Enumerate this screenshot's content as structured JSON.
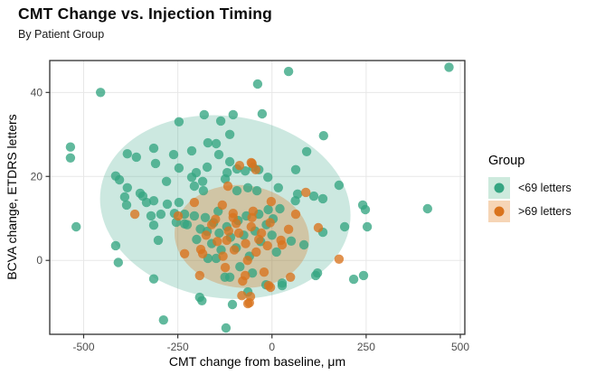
{
  "header": {
    "title": "CMT Change vs. Injection Timing",
    "subtitle": "By Patient Group"
  },
  "axes": {
    "x": {
      "label": "CMT change from baseline, μm",
      "tick_labels": [
        "-500",
        "-250",
        "0",
        "250",
        "500"
      ]
    },
    "y": {
      "label": "BCVA change, ETDRS letters",
      "tick_labels": [
        "0",
        "20",
        "40"
      ]
    }
  },
  "legend": {
    "title": "Group",
    "items": [
      {
        "label": "<69 letters",
        "dot_color": "#35a582",
        "swatch_bg": "#cdeadd"
      },
      {
        "label": ">69 letters",
        "dot_color": "#d9731d",
        "swatch_bg": "#f6d5b6"
      }
    ]
  },
  "colors": {
    "gridline": "#e7e7e7",
    "panel_border": "#2e2e2e",
    "tick_mark": "#333333",
    "tick_label": "#4d4d4d",
    "background": "#ffffff",
    "teal_point": "#35a582",
    "orange_point": "#d9731d"
  },
  "chart_data": {
    "type": "scatter",
    "title": "CMT Change vs. Injection Timing",
    "subtitle": "By Patient Group",
    "xlabel": "CMT change from baseline, μm",
    "ylabel": "BCVA change, ETDRS letters",
    "x_domain": [
      -590,
      512
    ],
    "y_domain": [
      -17.6,
      47.6
    ],
    "x_ticks": [
      -500,
      -250,
      0,
      250,
      500
    ],
    "y_ticks": [
      0,
      20,
      40
    ],
    "grid": "major only, light gray on white panel with black border",
    "legend_position": "right",
    "legend_title": "Group",
    "point_radius_px": 5.2,
    "point_opacity": 0.78,
    "series": [
      {
        "name": "<69 letters",
        "point_color": "#35a582",
        "ellipse_fill": "rgba(53,165,130,0.25)",
        "ellipse": {
          "cx": -124,
          "cy": 12.7,
          "rx": 334,
          "ry": 21.7,
          "angle_deg": 8
        },
        "points": [
          [
            470,
            46
          ],
          [
            -455,
            40
          ],
          [
            44,
            45
          ],
          [
            -38,
            42
          ],
          [
            -535,
            27
          ],
          [
            -535,
            24.4
          ],
          [
            -247,
            33
          ],
          [
            -314,
            26.7
          ],
          [
            -384,
            25.4
          ],
          [
            -360,
            24.6
          ],
          [
            -261,
            25.2
          ],
          [
            -309,
            23.1
          ],
          [
            -247,
            22
          ],
          [
            -415,
            20.1
          ],
          [
            -405,
            19.2
          ],
          [
            -280,
            18.8
          ],
          [
            -384,
            17.3
          ],
          [
            -350,
            16
          ],
          [
            -180,
            34.7
          ],
          [
            -103,
            34.7
          ],
          [
            -26,
            34.9
          ],
          [
            -136,
            33.2
          ],
          [
            -112,
            30
          ],
          [
            -170,
            28
          ],
          [
            -148,
            27.8
          ],
          [
            -213,
            26.1
          ],
          [
            -141,
            25.2
          ],
          [
            -112,
            23.5
          ],
          [
            137,
            29.7
          ],
          [
            92,
            25.9
          ],
          [
            -172,
            22.2
          ],
          [
            -201,
            20.9
          ],
          [
            -119,
            20.9
          ],
          [
            -93,
            21.8
          ],
          [
            -71,
            21.3
          ],
          [
            -50,
            22.2
          ],
          [
            -35,
            21.6
          ],
          [
            -213,
            19.8
          ],
          [
            -184,
            18.8
          ],
          [
            -124,
            19.4
          ],
          [
            -11,
            19.8
          ],
          [
            63,
            21.6
          ],
          [
            178,
            17.9
          ],
          [
            -206,
            17.7
          ],
          [
            -182,
            16.6
          ],
          [
            -64,
            17.3
          ],
          [
            -40,
            16.6
          ],
          [
            17,
            17.3
          ],
          [
            68,
            15.8
          ],
          [
            111,
            15.3
          ],
          [
            -93,
            16.6
          ],
          [
            -386,
            13.2
          ],
          [
            -333,
            13.8
          ],
          [
            -314,
            14.2
          ],
          [
            -278,
            13.4
          ],
          [
            -247,
            13.8
          ],
          [
            -321,
            10.6
          ],
          [
            -295,
            11
          ],
          [
            -259,
            11.2
          ],
          [
            -232,
            11
          ],
          [
            -520,
            8
          ],
          [
            -314,
            8.4
          ],
          [
            -254,
            9.1
          ],
          [
            -232,
            8.7
          ],
          [
            -302,
            4.8
          ],
          [
            -415,
            3.5
          ],
          [
            -408,
            -0.5
          ],
          [
            -314,
            -4.4
          ],
          [
            -288,
            -14.2
          ],
          [
            -122,
            -16.1
          ],
          [
            -391,
            15.1
          ],
          [
            -343,
            15.3
          ],
          [
            241,
            13.2
          ],
          [
            248,
            12.1
          ],
          [
            193,
            8
          ],
          [
            253,
            8
          ],
          [
            217,
            -4.5
          ],
          [
            243,
            -3.6
          ],
          [
            413,
            12.3
          ],
          [
            135,
            14.7
          ],
          [
            -143,
            11.7
          ],
          [
            -68,
            10.6
          ],
          [
            -10,
            12.1
          ],
          [
            21,
            12.3
          ],
          [
            62,
            14.2
          ],
          [
            -206,
            10.6
          ],
          [
            -177,
            10.2
          ],
          [
            3,
            9.9
          ],
          [
            135,
            6.7
          ],
          [
            85,
            3.7
          ],
          [
            51,
            4.6
          ],
          [
            12,
            2
          ],
          [
            -172,
            6.9
          ],
          [
            -148,
            0.5
          ],
          [
            -112,
            -4
          ],
          [
            -52,
            -3
          ],
          [
            27,
            -6
          ],
          [
            121,
            -3
          ],
          [
            -192,
            -8.8
          ],
          [
            -105,
            -10.5
          ],
          [
            -64,
            -7.5
          ],
          [
            -125,
            -4
          ],
          [
            -16,
            -5.8
          ],
          [
            27,
            -5.4
          ],
          [
            116,
            -3.6
          ],
          [
            -186,
            -9.6
          ],
          [
            -225,
            8.5
          ],
          [
            -200,
            5
          ],
          [
            -190,
            7.5
          ],
          [
            -160,
            4
          ],
          [
            -155,
            9
          ],
          [
            -140,
            6.5
          ],
          [
            -135,
            2.5
          ],
          [
            -120,
            8
          ],
          [
            -110,
            5.5
          ],
          [
            -95,
            3
          ],
          [
            -90,
            9.5
          ],
          [
            -75,
            6
          ],
          [
            -60,
            1
          ],
          [
            -45,
            7
          ],
          [
            -30,
            4.5
          ],
          [
            -15,
            8.5
          ],
          [
            0,
            6
          ],
          [
            -170,
            0.5
          ],
          [
            -85,
            -1.5
          ],
          [
            -35,
            11
          ]
        ]
      },
      {
        "name": ">69 letters",
        "point_color": "#d9731d",
        "ellipse_fill": "rgba(217,115,29,0.30)",
        "ellipse": {
          "cx": -80,
          "cy": 5.7,
          "rx": 179,
          "ry": 12.2,
          "angle_deg": 6
        },
        "points": [
          [
            -364,
            11
          ],
          [
            -249,
            10.6
          ],
          [
            -232,
            1.6
          ],
          [
            -55,
            23.3
          ],
          [
            -43,
            21.6
          ],
          [
            -86,
            22.6
          ],
          [
            -53,
            23.1
          ],
          [
            -2,
            14
          ],
          [
            90,
            16.2
          ],
          [
            178,
            0.3
          ],
          [
            -206,
            13.8
          ],
          [
            -132,
            13.2
          ],
          [
            -103,
            11.2
          ],
          [
            -50,
            11.7
          ],
          [
            63,
            11
          ],
          [
            -103,
            10.2
          ],
          [
            -53,
            10.2
          ],
          [
            123,
            7.8
          ],
          [
            44,
            7.4
          ],
          [
            24,
            4.8
          ],
          [
            27,
            3.7
          ],
          [
            -189,
            2.6
          ],
          [
            -184,
            1.6
          ],
          [
            -124,
            -1.7
          ],
          [
            -78,
            -4.9
          ],
          [
            -21,
            -2.8
          ],
          [
            -9,
            -6
          ],
          [
            49,
            -4
          ],
          [
            -80,
            -8.4
          ],
          [
            -64,
            -10.3
          ],
          [
            -192,
            -3.6
          ],
          [
            -71,
            -3.6
          ],
          [
            -4,
            -6.4
          ],
          [
            -57,
            -8.6
          ],
          [
            -60,
            -10.1
          ],
          [
            -117,
            17.7
          ],
          [
            -175,
            6
          ],
          [
            -160,
            8.5
          ],
          [
            -145,
            4.5
          ],
          [
            -130,
            1
          ],
          [
            -115,
            7
          ],
          [
            -100,
            2.5
          ],
          [
            -88,
            6.5
          ],
          [
            -70,
            4
          ],
          [
            -55,
            8
          ],
          [
            -42,
            2
          ],
          [
            -28,
            6.5
          ],
          [
            -12,
            3.5
          ],
          [
            -5,
            9
          ],
          [
            -150,
            9.8
          ],
          [
            -65,
            0
          ],
          [
            -35,
            5
          ],
          [
            -95,
            8.8
          ],
          [
            -120,
            4.8
          ]
        ]
      }
    ]
  }
}
